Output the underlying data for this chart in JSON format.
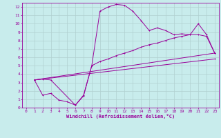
{
  "xlabel": "Windchill (Refroidissement éolien,°C)",
  "xlim": [
    -0.5,
    23.5
  ],
  "ylim": [
    0,
    12.5
  ],
  "xticks": [
    0,
    1,
    2,
    3,
    4,
    5,
    6,
    7,
    8,
    9,
    10,
    11,
    12,
    13,
    14,
    15,
    16,
    17,
    18,
    19,
    20,
    21,
    22,
    23
  ],
  "yticks": [
    0,
    1,
    2,
    3,
    4,
    5,
    6,
    7,
    8,
    9,
    10,
    11,
    12
  ],
  "background_color": "#c8ecec",
  "grid_color": "#b0d0d0",
  "line_color": "#990099",
  "line1_x": [
    1,
    2,
    3,
    6,
    7,
    8,
    9,
    10,
    11,
    12,
    13,
    14,
    15,
    16,
    17,
    18,
    19,
    20,
    21,
    22,
    23
  ],
  "line1_y": [
    3.3,
    3.4,
    3.3,
    0.3,
    1.5,
    5.0,
    11.5,
    12.0,
    12.3,
    12.2,
    11.5,
    10.4,
    9.2,
    9.5,
    9.2,
    8.7,
    8.8,
    8.7,
    10.0,
    8.7,
    6.5
  ],
  "line2_x": [
    1,
    2,
    3,
    4,
    5,
    6,
    7,
    8,
    9,
    10,
    11,
    12,
    13,
    14,
    15,
    16,
    17,
    18,
    19,
    20,
    21,
    22,
    23
  ],
  "line2_y": [
    3.3,
    1.5,
    1.7,
    0.9,
    0.7,
    0.3,
    1.4,
    5.0,
    5.5,
    5.8,
    6.2,
    6.5,
    6.8,
    7.2,
    7.5,
    7.7,
    8.0,
    8.3,
    8.5,
    8.7,
    8.7,
    8.5,
    6.5
  ],
  "line3_x": [
    1,
    23
  ],
  "line3_y": [
    3.3,
    6.5
  ],
  "line4_x": [
    1,
    23
  ],
  "line4_y": [
    3.3,
    5.8
  ],
  "lw": 0.7,
  "ms": 2.0,
  "xlabel_fontsize": 5,
  "tick_fontsize": 4.5
}
